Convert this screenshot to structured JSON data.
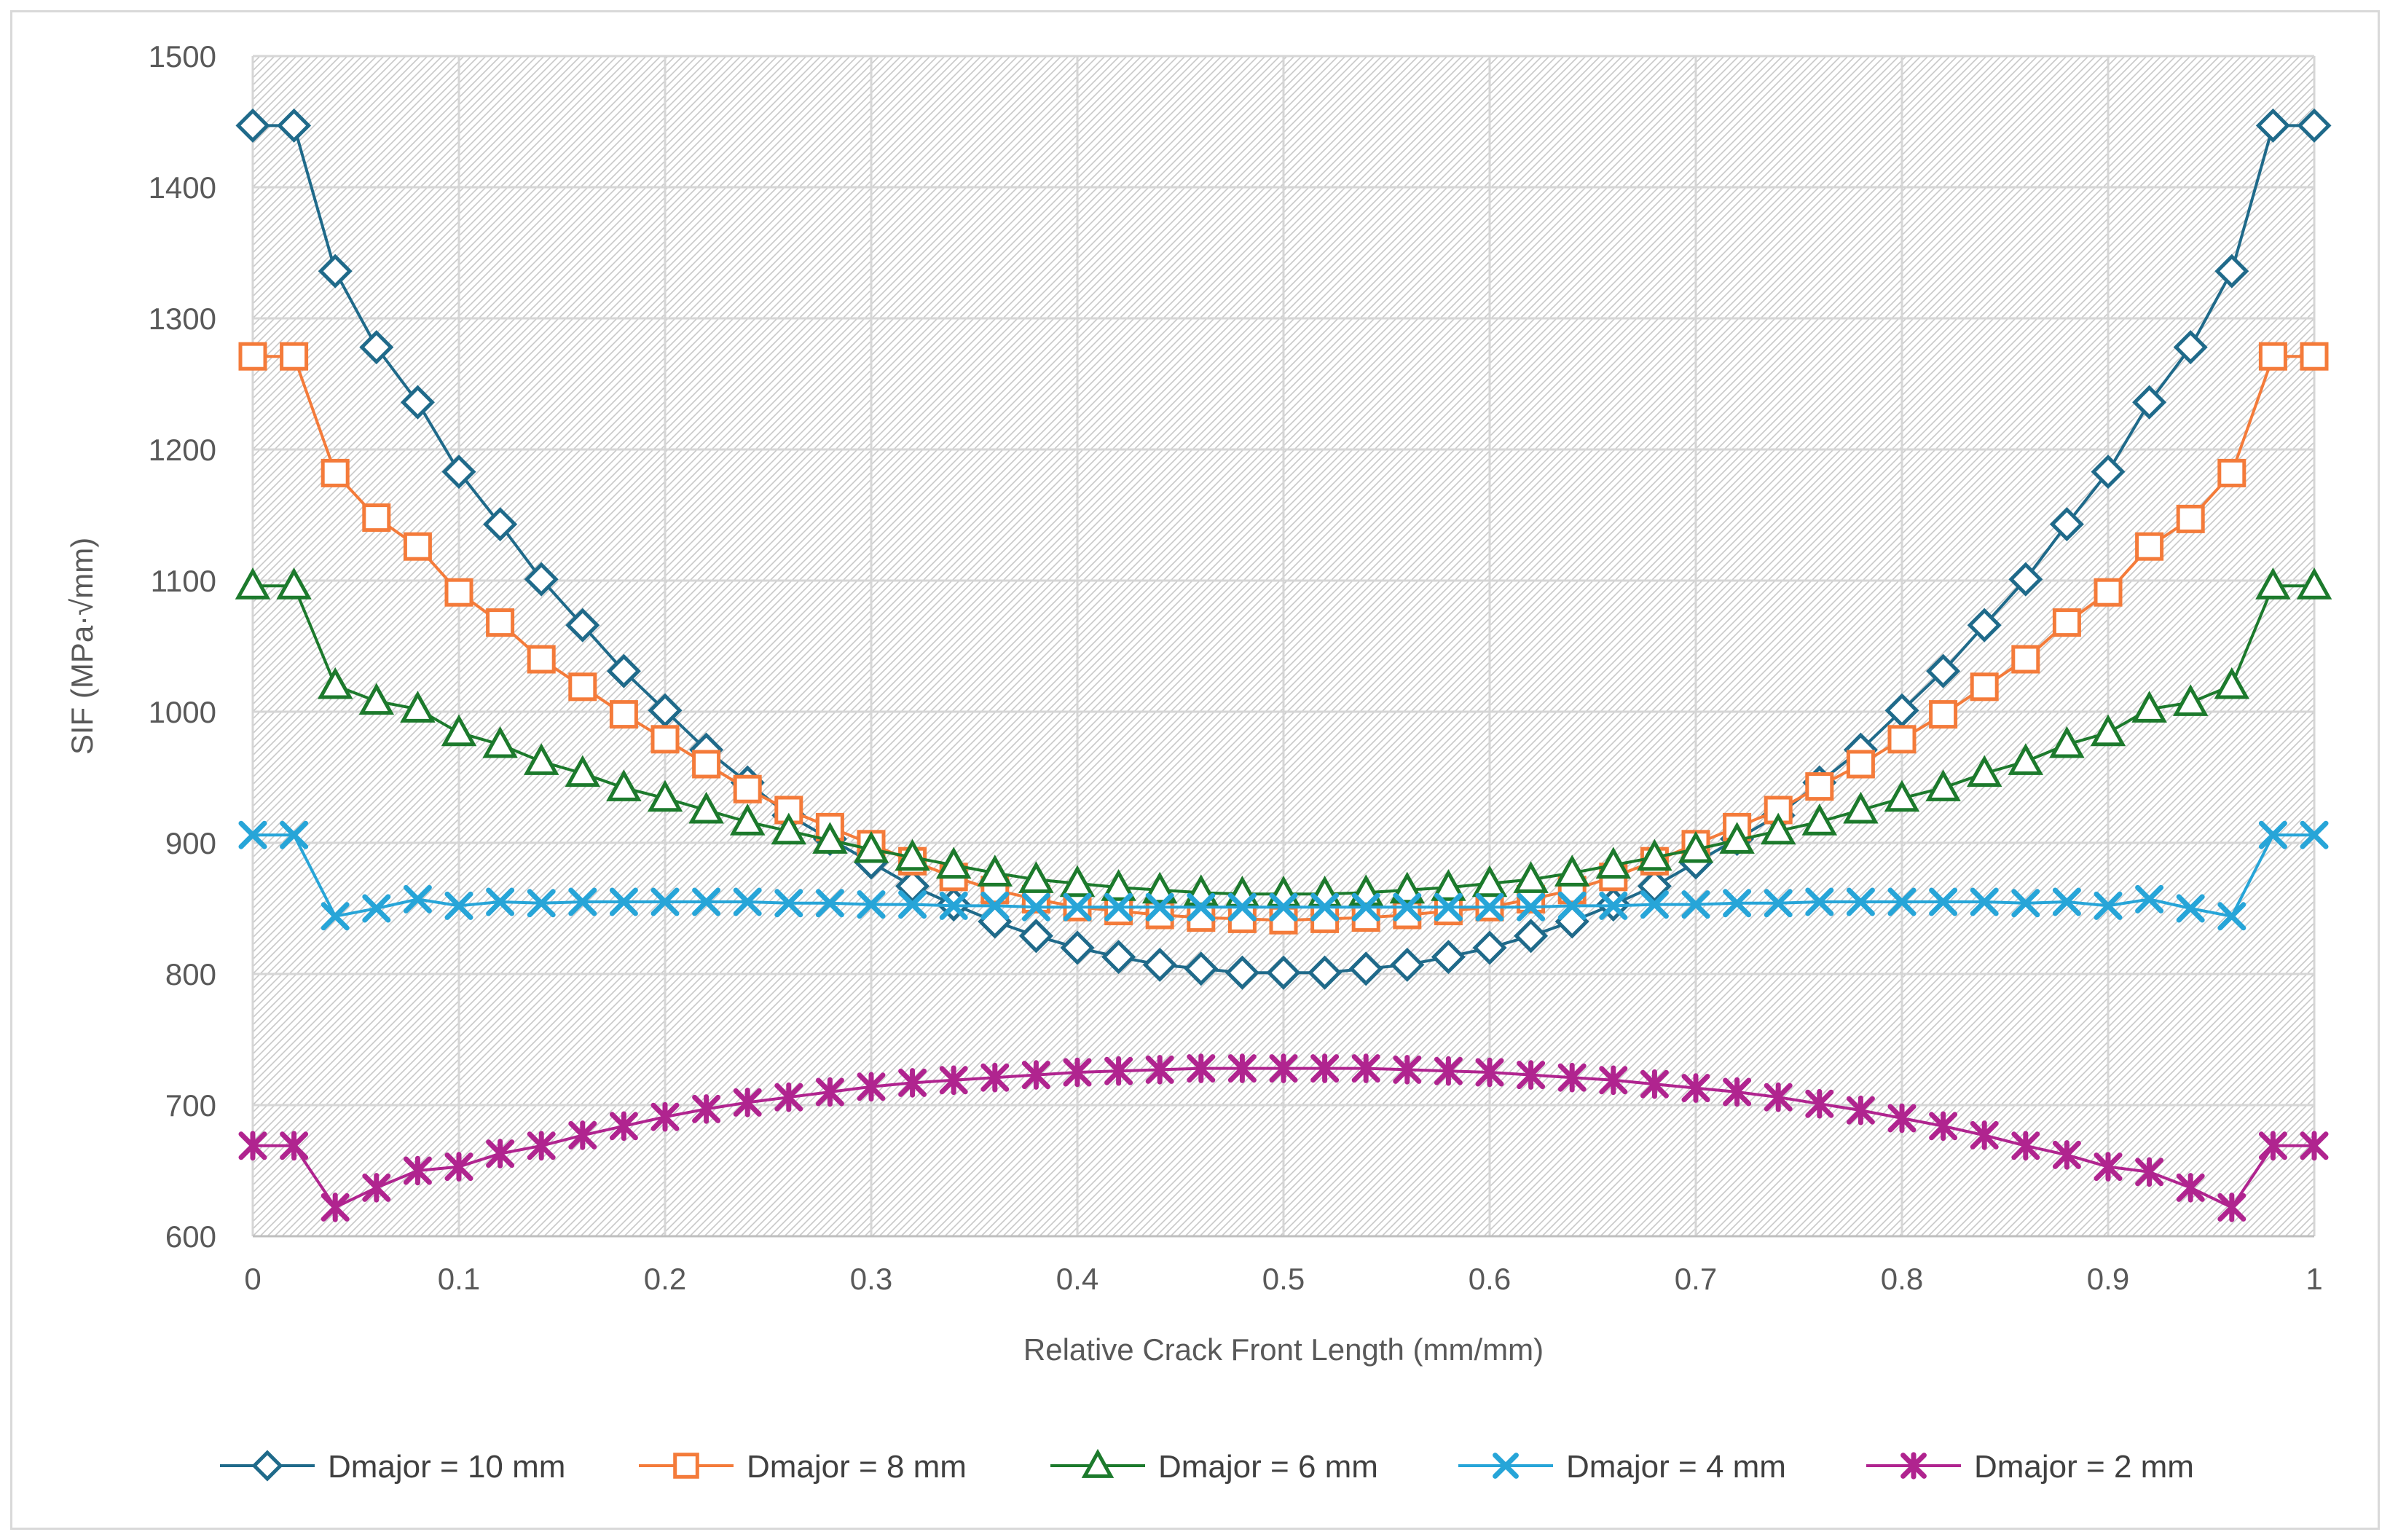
{
  "chart_data": {
    "type": "line",
    "title": "",
    "xlabel": "Relative Crack Front Length (mm/mm)",
    "ylabel": "SIF (MPa·√mm)",
    "xlim": [
      0,
      1
    ],
    "ylim": [
      600,
      1500
    ],
    "xticks": [
      0,
      0.1,
      0.2,
      0.3,
      0.4,
      0.5,
      0.6,
      0.7,
      0.8,
      0.9,
      1
    ],
    "yticks": [
      600,
      700,
      800,
      900,
      1000,
      1100,
      1200,
      1300,
      1400,
      1500
    ],
    "grid": true,
    "legend_position": "bottom",
    "x": [
      0,
      0.02,
      0.04,
      0.06,
      0.08,
      0.1,
      0.12,
      0.14,
      0.16,
      0.18,
      0.2,
      0.22,
      0.24,
      0.26,
      0.28,
      0.3,
      0.32,
      0.34,
      0.36,
      0.38,
      0.4,
      0.42,
      0.44,
      0.46,
      0.48,
      0.5,
      0.52,
      0.54,
      0.56,
      0.58,
      0.6,
      0.62,
      0.64,
      0.66,
      0.68,
      0.7,
      0.72,
      0.74,
      0.76,
      0.78,
      0.8,
      0.82,
      0.84,
      0.86,
      0.88,
      0.9,
      0.92,
      0.94,
      0.96,
      0.98,
      1
    ],
    "series": [
      {
        "name": "Dmajor = 10 mm",
        "color": "#1f6a8a",
        "marker": "diamond",
        "values": [
          1447,
          1447,
          1336,
          1278,
          1236,
          1183,
          1143,
          1101,
          1066,
          1031,
          1001,
          971,
          946,
          921,
          903,
          885,
          867,
          853,
          840,
          829,
          820,
          813,
          807,
          804,
          801,
          801,
          801,
          804,
          807,
          813,
          820,
          829,
          840,
          853,
          867,
          885,
          903,
          921,
          946,
          971,
          1001,
          1031,
          1066,
          1101,
          1143,
          1183,
          1236,
          1278,
          1336,
          1447,
          1447
        ]
      },
      {
        "name": "Dmajor = 8 mm",
        "color": "#f47b3a",
        "marker": "square",
        "values": [
          1271,
          1271,
          1182,
          1148,
          1126,
          1091,
          1068,
          1040,
          1019,
          998,
          979,
          960,
          941,
          925,
          912,
          899,
          886,
          874,
          864,
          857,
          851,
          848,
          845,
          843,
          842,
          841,
          842,
          843,
          845,
          848,
          851,
          857,
          864,
          874,
          886,
          899,
          912,
          925,
          943,
          960,
          979,
          998,
          1019,
          1040,
          1068,
          1091,
          1126,
          1147,
          1182,
          1271,
          1271
        ]
      },
      {
        "name": "Dmajor = 6 mm",
        "color": "#1c7a2c",
        "marker": "triangle",
        "values": [
          1096,
          1096,
          1020,
          1008,
          1002,
          984,
          975,
          962,
          953,
          942,
          934,
          925,
          916,
          909,
          902,
          895,
          889,
          883,
          877,
          872,
          869,
          866,
          864,
          862,
          861,
          861,
          861,
          862,
          864,
          866,
          869,
          872,
          877,
          883,
          889,
          895,
          902,
          909,
          916,
          925,
          934,
          942,
          953,
          962,
          975,
          984,
          1002,
          1007,
          1020,
          1096,
          1096
        ]
      },
      {
        "name": "Dmajor = 4 mm",
        "color": "#27a5d8",
        "marker": "x",
        "values": [
          906,
          906,
          844,
          850,
          857,
          852,
          855,
          854,
          855,
          855,
          855,
          855,
          855,
          854,
          854,
          853,
          853,
          852,
          852,
          851,
          851,
          851,
          851,
          851,
          851,
          851,
          851,
          851,
          851,
          851,
          851,
          851,
          852,
          852,
          853,
          853,
          854,
          854,
          855,
          855,
          855,
          855,
          855,
          854,
          855,
          852,
          857,
          850,
          844,
          906,
          906
        ]
      },
      {
        "name": "Dmajor = 2 mm",
        "color": "#b0248f",
        "marker": "star",
        "values": [
          669,
          669,
          622,
          637,
          650,
          653,
          663,
          669,
          677,
          684,
          691,
          697,
          702,
          706,
          710,
          714,
          717,
          719,
          721,
          723,
          725,
          726,
          727,
          728,
          728,
          728,
          728,
          728,
          727,
          726,
          725,
          723,
          721,
          719,
          716,
          713,
          710,
          706,
          701,
          696,
          690,
          684,
          677,
          669,
          662,
          653,
          649,
          637,
          622,
          669,
          669
        ]
      }
    ]
  }
}
